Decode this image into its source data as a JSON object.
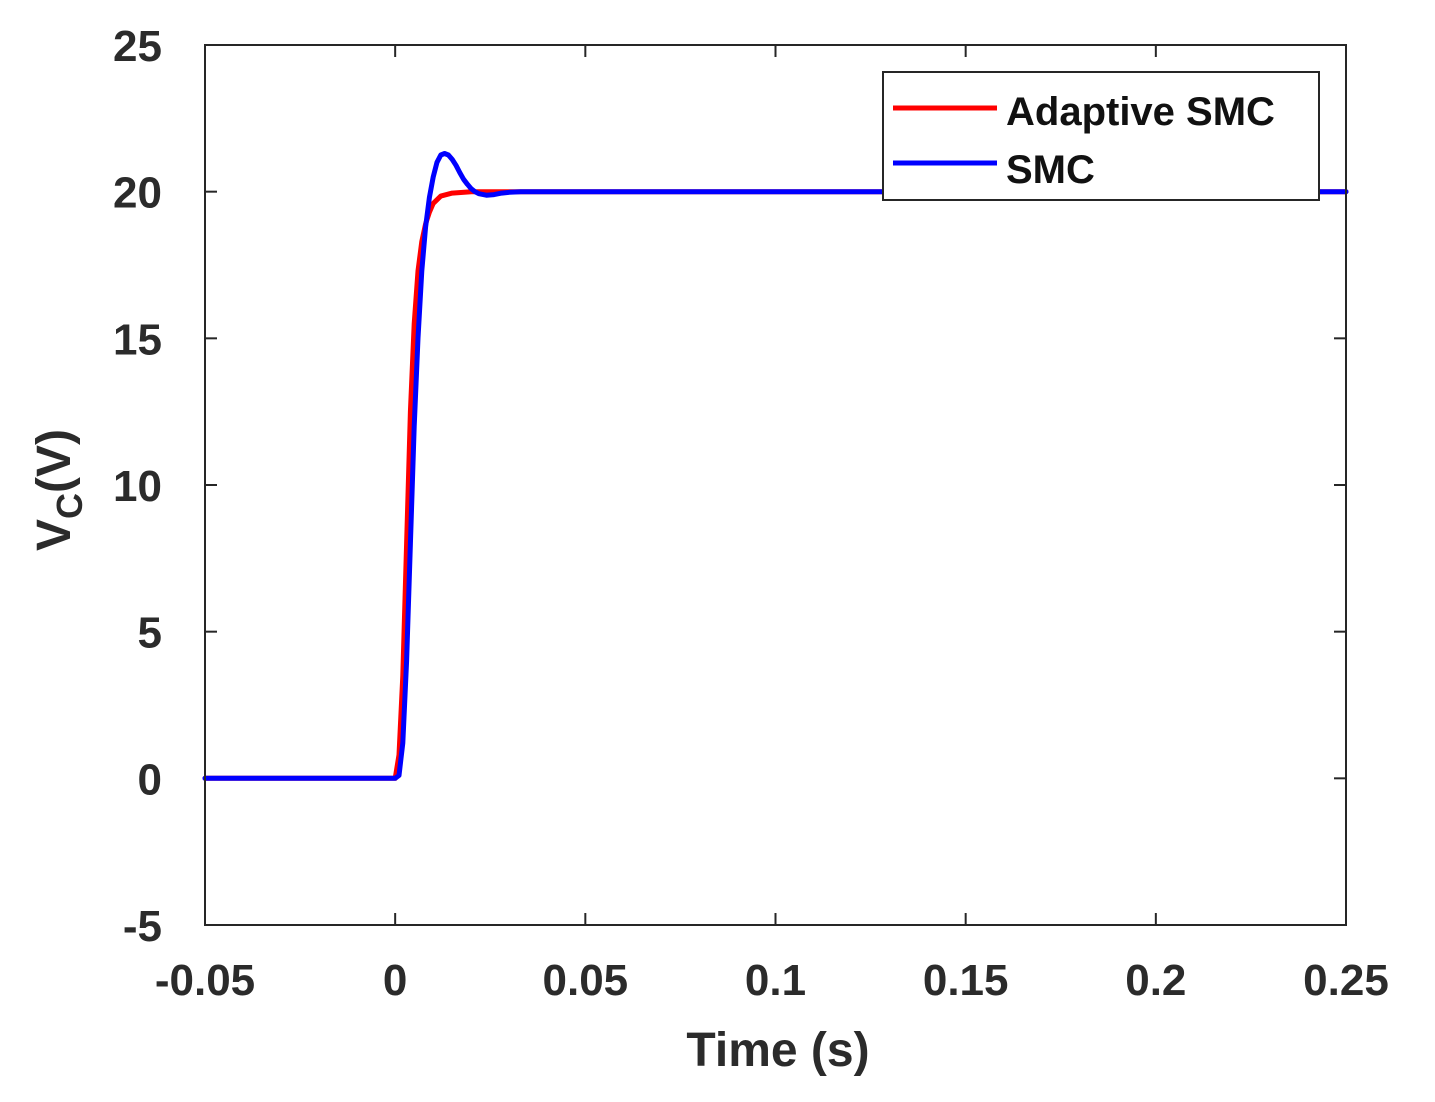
{
  "chart_data": {
    "type": "line",
    "title": "",
    "xlabel": "Time (s)",
    "ylabel": {
      "main": "V",
      "sub": "C",
      "rest": "(V)"
    },
    "xlim": [
      -0.05,
      0.25
    ],
    "ylim": [
      -5,
      25
    ],
    "xticks": [
      -0.05,
      0,
      0.05,
      0.1,
      0.15,
      0.2,
      0.25
    ],
    "xtick_labels": [
      "-0.05",
      "0",
      "0.05",
      "0.1",
      "0.15",
      "0.2",
      "0.25"
    ],
    "yticks": [
      -5,
      0,
      5,
      10,
      15,
      20,
      25
    ],
    "ytick_labels": [
      "-5",
      "0",
      "5",
      "10",
      "15",
      "20",
      "25"
    ],
    "grid": false,
    "legend_position": "top-right",
    "series": [
      {
        "name": "Adaptive SMC",
        "color": "#ff0000",
        "x": [
          -0.05,
          0,
          0.001,
          0.002,
          0.003,
          0.004,
          0.005,
          0.006,
          0.007,
          0.008,
          0.009,
          0.01,
          0.012,
          0.015,
          0.02,
          0.03,
          0.25
        ],
        "y": [
          0,
          0,
          0.8,
          3.5,
          8,
          12.5,
          15.5,
          17.3,
          18.3,
          18.9,
          19.3,
          19.6,
          19.85,
          19.95,
          20,
          20,
          20
        ]
      },
      {
        "name": "SMC",
        "color": "#0000ff",
        "x": [
          -0.05,
          0,
          0.001,
          0.002,
          0.003,
          0.004,
          0.005,
          0.006,
          0.007,
          0.008,
          0.009,
          0.01,
          0.011,
          0.012,
          0.013,
          0.014,
          0.015,
          0.016,
          0.017,
          0.018,
          0.019,
          0.02,
          0.021,
          0.022,
          0.024,
          0.026,
          0.028,
          0.03,
          0.033,
          0.036,
          0.04,
          0.25
        ],
        "y": [
          0,
          0,
          0.1,
          1.2,
          4,
          8,
          12,
          15,
          17.3,
          18.8,
          19.8,
          20.5,
          21,
          21.25,
          21.3,
          21.25,
          21.1,
          20.9,
          20.65,
          20.42,
          20.25,
          20.1,
          20,
          19.93,
          19.88,
          19.9,
          19.95,
          19.98,
          20,
          20,
          20,
          20
        ]
      }
    ]
  }
}
